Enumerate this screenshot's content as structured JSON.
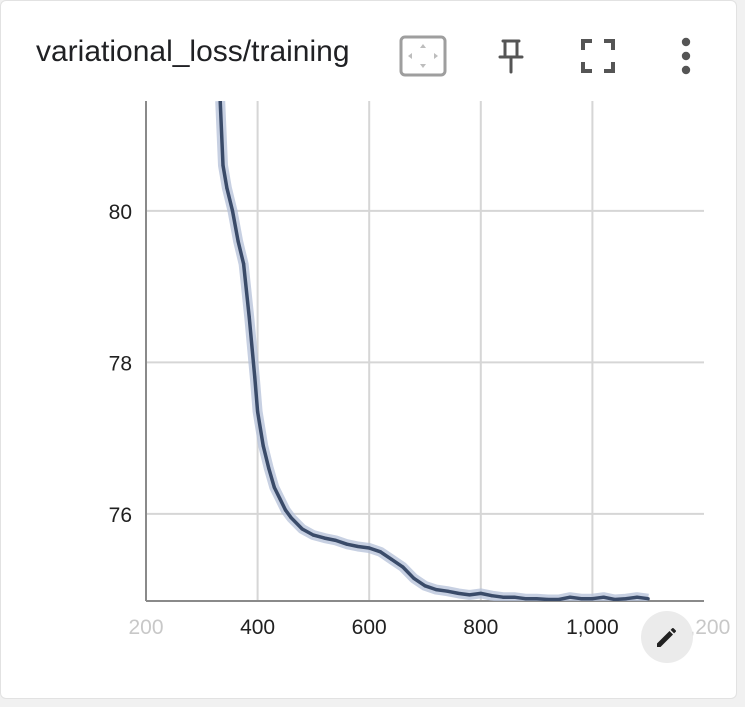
{
  "card": {
    "title": "variational_loss/training",
    "icons": {
      "fit_domain": "fit-domain-icon",
      "pin": "pin-icon",
      "fullscreen": "fullscreen-icon",
      "more": "more-vert-icon",
      "edit": "edit-pencil-icon"
    }
  },
  "colors": {
    "line": "#3a4b69",
    "band": "#b4c0d8",
    "grid": "#d6d6d6",
    "axis": "#8a8a8a",
    "tick_text": "#212121",
    "faded_tick": "#c8c8c8"
  },
  "chart_data": {
    "type": "line",
    "title": "variational_loss/training",
    "xlabel": "",
    "ylabel": "",
    "xlim": [
      200,
      1200
    ],
    "ylim": [
      74.85,
      81.45
    ],
    "x_ticks": [
      {
        "value": 200,
        "label": "200",
        "faded": true
      },
      {
        "value": 400,
        "label": "400",
        "faded": false
      },
      {
        "value": 600,
        "label": "600",
        "faded": false
      },
      {
        "value": 800,
        "label": "800",
        "faded": false
      },
      {
        "value": 1000,
        "label": "1,000",
        "faded": false
      },
      {
        "value": 1200,
        "label": "1,200",
        "faded": true
      }
    ],
    "y_ticks": [
      {
        "value": 76,
        "label": "76"
      },
      {
        "value": 78,
        "label": "78"
      },
      {
        "value": 80,
        "label": "80"
      }
    ],
    "grid": true,
    "series": [
      {
        "x": [
          333,
          338,
          345,
          355,
          365,
          375,
          385,
          395,
          400,
          410,
          420,
          430,
          440,
          450,
          460,
          480,
          500,
          520,
          540,
          560,
          580,
          600,
          620,
          640,
          660,
          680,
          700,
          720,
          740,
          760,
          780,
          800,
          820,
          840,
          860,
          880,
          900,
          920,
          940,
          960,
          980,
          1000,
          1020,
          1040,
          1060,
          1080,
          1100
        ],
        "y": [
          81.45,
          80.6,
          80.3,
          80.0,
          79.6,
          79.3,
          78.6,
          77.8,
          77.35,
          76.9,
          76.6,
          76.35,
          76.2,
          76.05,
          75.95,
          75.8,
          75.72,
          75.68,
          75.65,
          75.6,
          75.57,
          75.55,
          75.5,
          75.4,
          75.3,
          75.15,
          75.05,
          75.0,
          74.98,
          74.95,
          74.93,
          74.95,
          74.92,
          74.9,
          74.9,
          74.88,
          74.88,
          74.87,
          74.87,
          74.9,
          74.88,
          74.88,
          74.9,
          74.87,
          74.88,
          74.9,
          74.88
        ]
      }
    ]
  }
}
